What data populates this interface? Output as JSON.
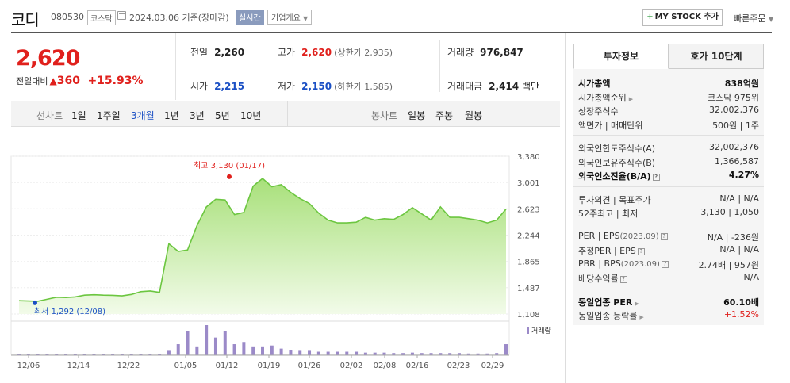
{
  "header": {
    "name": "코디",
    "code": "080530",
    "market": "코스닥",
    "date": "2024.03.06",
    "basis": "기준(장마감)",
    "realtime": "실시간",
    "company_info": "기업개요",
    "mystock": "MY STOCK 추가",
    "quick_order": "빠른주문"
  },
  "price": {
    "current": "2,620",
    "change_label": "전일대비",
    "change": "360",
    "change_pct": "+15.93%"
  },
  "stats": {
    "prev_label": "전일",
    "prev": "2,260",
    "high_label": "고가",
    "high": "2,620",
    "upper_limit": "(상한가 2,935)",
    "volume_label": "거래량",
    "volume": "976,847",
    "open_label": "시가",
    "open": "2,215",
    "low_label": "저가",
    "low": "2,150",
    "lower_limit": "(하한가 1,585)",
    "amount_label": "거래대금",
    "amount": "2,414",
    "amount_unit": "백만"
  },
  "chart_toolbar": {
    "line_label": "선차트",
    "periods": [
      "1일",
      "1주일",
      "3개월",
      "1년",
      "3년",
      "5년",
      "10년"
    ],
    "selected": "3개월",
    "candle_label": "봉차트",
    "candles": [
      "일봉",
      "주봉",
      "월봉"
    ]
  },
  "chart_data": {
    "type": "area",
    "yticks": [
      1108,
      1487,
      1865,
      2244,
      2623,
      3001,
      3380
    ],
    "ylim": [
      1108,
      3380
    ],
    "xticks": [
      "12/06",
      "12/14",
      "12/22",
      "01/05",
      "01/12",
      "01/19",
      "01/26",
      "02/02",
      "02/08",
      "02/16",
      "02/23",
      "02/29"
    ],
    "high_label": "최고 3,130 (01/17)",
    "low_label": "최저 1,292 (12/08)",
    "volume_label": "거래량",
    "values": [
      1300,
      1295,
      1292,
      1320,
      1350,
      1345,
      1355,
      1380,
      1385,
      1380,
      1378,
      1370,
      1390,
      1430,
      1440,
      1420,
      2120,
      2010,
      2030,
      2380,
      2650,
      2760,
      2750,
      2540,
      2570,
      2950,
      3060,
      2940,
      2970,
      2860,
      2770,
      2700,
      2560,
      2460,
      2420,
      2420,
      2430,
      2500,
      2460,
      2480,
      2470,
      2540,
      2640,
      2550,
      2460,
      2650,
      2500,
      2500,
      2480,
      2460,
      2420,
      2460,
      2620
    ],
    "volumes": [
      3,
      2,
      2,
      2,
      2,
      2,
      2,
      2,
      2,
      2,
      2,
      2,
      2,
      3,
      3,
      2,
      10,
      25,
      55,
      20,
      68,
      40,
      55,
      25,
      30,
      20,
      20,
      22,
      15,
      12,
      10,
      10,
      8,
      8,
      8,
      8,
      8,
      6,
      6,
      6,
      5,
      5,
      6,
      5,
      5,
      5,
      5,
      5,
      4,
      4,
      4,
      5,
      25
    ]
  },
  "side": {
    "tabs": [
      "투자정보",
      "호가 10단계"
    ],
    "rows1": [
      {
        "k": "시가총액",
        "v": "838억원",
        "bold": true
      },
      {
        "k": "시가총액순위",
        "v": "코스닥 975위",
        "arrow": true
      },
      {
        "k": "상장주식수",
        "v": "32,002,376"
      },
      {
        "k": "액면가 | 매매단위",
        "v": "500원 | 1주"
      }
    ],
    "rows2": [
      {
        "k": "외국인한도주식수(A)",
        "v": "32,002,376"
      },
      {
        "k": "외국인보유주식수(B)",
        "v": "1,366,587"
      },
      {
        "k": "외국인소진율(B/A)",
        "v": "4.27%",
        "bold": true,
        "q": true
      }
    ],
    "rows3": [
      {
        "k": "투자의견 | 목표주가",
        "v": "N/A | N/A"
      },
      {
        "k": "52주최고 | 최저",
        "v": "3,130 | 1,050"
      }
    ],
    "rows4": [
      {
        "k": "PER | EPS",
        "sub": "(2023.09)",
        "v": "N/A | -236원",
        "q": true
      },
      {
        "k": "추정PER | EPS",
        "v": "N/A | N/A",
        "q": true
      },
      {
        "k": "PBR | BPS",
        "sub": "(2023.09)",
        "v": "2.74배 | 957원",
        "q": true
      },
      {
        "k": "배당수익률",
        "v": "N/A",
        "q": true
      }
    ],
    "rows5": [
      {
        "k": "동일업종 PER",
        "v": "60.10배",
        "bold": true,
        "arrow": true
      },
      {
        "k": "동일업종 등락률",
        "v": "+1.52%",
        "arrow": true,
        "red": true
      }
    ]
  },
  "colors": {
    "up": "#e0201c",
    "down": "#1a4fc4",
    "area": "#8fd96a",
    "volume": "#9b8ac8"
  }
}
